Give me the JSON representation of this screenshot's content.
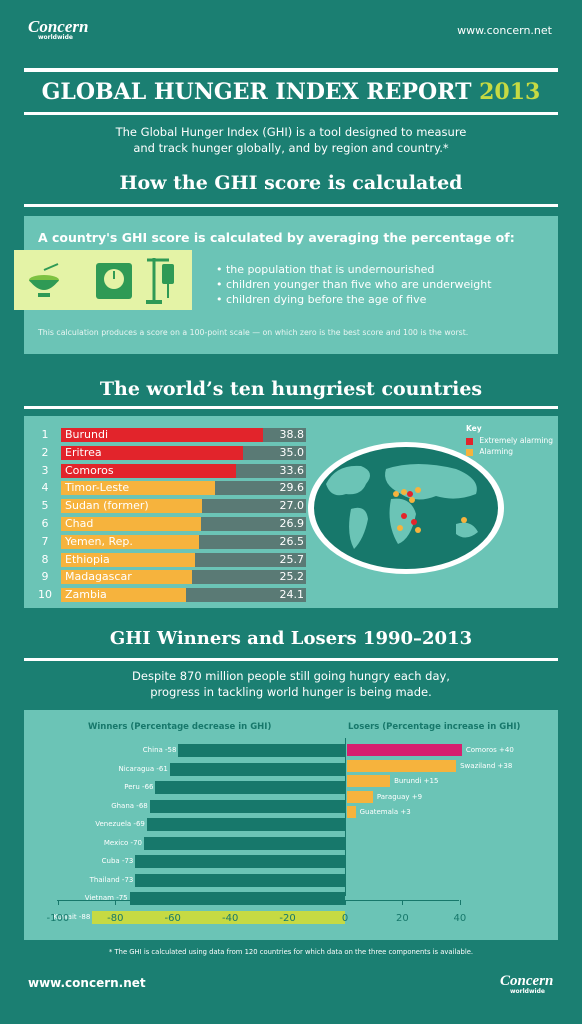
{
  "header": {
    "logo_name": "Concern",
    "logo_sub": "worldwide",
    "url": "www.concern.net"
  },
  "banner": {
    "title": "GLOBAL HUNGER INDEX REPORT",
    "year": "2013"
  },
  "intro": {
    "line1": "The Global Hunger Index (GHI) is a tool designed to measure",
    "line2": "and track hunger globally, and by region and country.*"
  },
  "calc": {
    "title": "How the GHI score is calculated",
    "lead": "A country's GHI score is calculated by averaging the percentage of:",
    "bullets": [
      "• the population that is undernourished",
      "• children younger than five who are underweight",
      "• children dying before the age of five"
    ],
    "note": "This calculation produces a score on a 100-point scale — on which zero is the best score and 100 is the worst.",
    "icons": [
      "bowl-icon",
      "scale-icon",
      "iv-drip-icon"
    ]
  },
  "hungriest": {
    "title": "The world’s ten hungriest countries",
    "key_title": "Key",
    "key_items": [
      {
        "label": "Extremely alarming",
        "color": "#e2242b"
      },
      {
        "label": "Alarming",
        "color": "#f6b33d"
      }
    ],
    "rows": [
      {
        "rank": "1",
        "country": "Burundi",
        "score": 38.8,
        "score_text": "38.8",
        "level": "extreme"
      },
      {
        "rank": "2",
        "country": "Eritrea",
        "score": 35.0,
        "score_text": "35.0",
        "level": "extreme"
      },
      {
        "rank": "3",
        "country": "Comoros",
        "score": 33.6,
        "score_text": "33.6",
        "level": "extreme"
      },
      {
        "rank": "4",
        "country": "Timor-Leste",
        "score": 29.6,
        "score_text": "29.6",
        "level": "alarming"
      },
      {
        "rank": "5",
        "country": "Sudan (former)",
        "score": 27.0,
        "score_text": "27.0",
        "level": "alarming"
      },
      {
        "rank": "6",
        "country": "Chad",
        "score": 26.9,
        "score_text": "26.9",
        "level": "alarming"
      },
      {
        "rank": "7",
        "country": "Yemen, Rep.",
        "score": 26.5,
        "score_text": "26.5",
        "level": "alarming"
      },
      {
        "rank": "8",
        "country": "Ethiopia",
        "score": 25.7,
        "score_text": "25.7",
        "level": "alarming"
      },
      {
        "rank": "9",
        "country": "Madagascar",
        "score": 25.2,
        "score_text": "25.2",
        "level": "alarming"
      },
      {
        "rank": "10",
        "country": "Zambia",
        "score": 24.1,
        "score_text": "24.1",
        "level": "alarming"
      }
    ]
  },
  "winners_losers": {
    "title": "GHI Winners and Losers 1990–2013",
    "sub1": "Despite 870 million people still going hungry each day,",
    "sub2": "progress in tackling world hunger is being made.",
    "winners_heading": "Winners (Percentage decrease in GHI)",
    "losers_heading": "Losers (Percentage increase in GHI)",
    "axis_ticks": [
      "-100",
      "-80",
      "-60",
      "-40",
      "-20",
      "0",
      "20",
      "40"
    ],
    "footnote": "* The GHI is calculated using data from 120 countries for which data on the three components is available."
  },
  "chart_data": [
    {
      "type": "bar",
      "title": "The world’s ten hungriest countries",
      "categories": [
        "Burundi",
        "Eritrea",
        "Comoros",
        "Timor-Leste",
        "Sudan (former)",
        "Chad",
        "Yemen, Rep.",
        "Ethiopia",
        "Madagascar",
        "Zambia"
      ],
      "values": [
        38.8,
        35.0,
        33.6,
        29.6,
        27.0,
        26.9,
        26.5,
        25.7,
        25.2,
        24.1
      ],
      "legend": [
        "Extremely alarming",
        "Alarming"
      ]
    },
    {
      "type": "bar",
      "title": "GHI Winners and Losers 1990–2013",
      "xlim": [
        -100,
        40
      ],
      "series": [
        {
          "name": "Winners (Percentage decrease in GHI)",
          "categories": [
            "China",
            "Nicaragua",
            "Peru",
            "Ghana",
            "Venezuela",
            "Mexico",
            "Cuba",
            "Thailand",
            "Vietnam",
            "Kuwait"
          ],
          "values": [
            -58,
            -61,
            -66,
            -68,
            -69,
            -70,
            -73,
            -73,
            -75,
            -88
          ],
          "value_labels": [
            "-58",
            "-61",
            "-66",
            "-68",
            "-69",
            "-70",
            "-73",
            "-73",
            "-75",
            "-88"
          ]
        },
        {
          "name": "Losers (Percentage increase in GHI)",
          "categories": [
            "Comoros",
            "Swaziland",
            "Burundi",
            "Paraguay",
            "Guatemala"
          ],
          "values": [
            40,
            38,
            15,
            9,
            3
          ],
          "value_labels": [
            "+40",
            "+38",
            "+15",
            "+9",
            "+3"
          ]
        }
      ]
    }
  ],
  "footer": {
    "url": "www.concern.net",
    "logo_name": "Concern",
    "logo_sub": "worldwide"
  },
  "colors": {
    "background": "#1b7f72",
    "panel": "#6bc4b6",
    "extreme": "#e2242b",
    "alarming": "#f6b33d",
    "winner_bar": "#17786b",
    "kuwait_bar": "#c6da43",
    "loser_top": "#d61f6f",
    "loser_bar": "#f6b33d",
    "year": "#c6da43"
  }
}
